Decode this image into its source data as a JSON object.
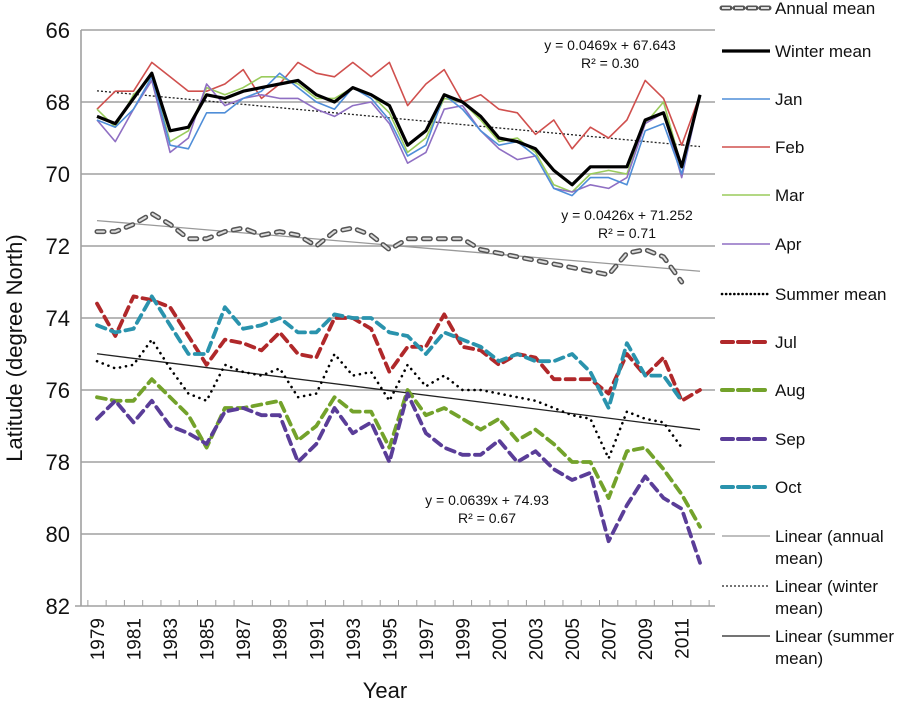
{
  "chart_data": {
    "type": "line",
    "title": "",
    "xlabel": "Year",
    "ylabel": "Latitude (degree North)",
    "y_reversed": true,
    "ylim": [
      66,
      82
    ],
    "y_ticks": [
      "66",
      "68",
      "70",
      "72",
      "74",
      "76",
      "78",
      "80",
      "82"
    ],
    "y_tick_values": [
      66,
      68,
      70,
      72,
      74,
      76,
      78,
      80,
      82
    ],
    "x_tick_labels": [
      "1979",
      "1981",
      "1983",
      "1985",
      "1987",
      "1989",
      "1991",
      "1993",
      "1995",
      "1997",
      "1999",
      "2001",
      "2003",
      "2005",
      "2007",
      "2009",
      "2011"
    ],
    "grid": "horizontal",
    "legend_position": "right",
    "x": [
      1979,
      1980,
      1981,
      1982,
      1983,
      1984,
      1985,
      1986,
      1987,
      1988,
      1989,
      1990,
      1991,
      1992,
      1993,
      1994,
      1995,
      1996,
      1997,
      1998,
      1999,
      2000,
      2001,
      2002,
      2003,
      2004,
      2005,
      2006,
      2007,
      2008,
      2009,
      2010,
      2011,
      2012
    ],
    "series": [
      {
        "name": "Annual mean",
        "color": "#555555",
        "style": "annual",
        "values": [
          71.6,
          71.6,
          71.4,
          71.1,
          71.4,
          71.8,
          71.8,
          71.6,
          71.5,
          71.7,
          71.6,
          71.7,
          72.0,
          71.6,
          71.5,
          71.7,
          72.1,
          71.8,
          71.8,
          71.8,
          71.8,
          72.1,
          72.2,
          72.3,
          72.4,
          72.5,
          72.6,
          72.7,
          72.8,
          72.2,
          72.1,
          72.3,
          73.0,
          null
        ]
      },
      {
        "name": "Winter mean",
        "color": "#000000",
        "style": "solid-bold",
        "values": [
          68.4,
          68.6,
          67.9,
          67.2,
          68.8,
          68.7,
          67.8,
          67.9,
          67.7,
          67.6,
          67.5,
          67.4,
          67.8,
          68.0,
          67.6,
          67.8,
          68.1,
          69.2,
          68.8,
          67.8,
          68.0,
          68.4,
          69.0,
          69.1,
          69.3,
          69.9,
          70.3,
          69.8,
          69.8,
          69.8,
          68.5,
          68.3,
          69.8,
          67.8
        ]
      },
      {
        "name": "Jan",
        "color": "#4f8ed8",
        "style": "solid",
        "values": [
          68.5,
          68.7,
          68.2,
          67.3,
          69.2,
          69.3,
          68.3,
          68.3,
          67.9,
          67.7,
          67.2,
          67.6,
          68.0,
          68.2,
          67.6,
          67.9,
          68.5,
          69.5,
          69.2,
          67.8,
          68.2,
          68.8,
          69.2,
          69.1,
          69.5,
          70.4,
          70.6,
          70.1,
          70.1,
          70.3,
          68.8,
          68.6,
          70.0,
          67.8
        ]
      },
      {
        "name": "Feb",
        "color": "#d0504e",
        "style": "solid",
        "values": [
          68.2,
          67.7,
          67.7,
          66.9,
          67.3,
          67.7,
          67.7,
          67.5,
          67.1,
          67.9,
          67.5,
          66.9,
          67.2,
          67.3,
          66.9,
          67.3,
          66.9,
          68.1,
          67.5,
          67.1,
          68.0,
          67.8,
          68.2,
          68.3,
          68.9,
          68.5,
          69.3,
          68.7,
          69.0,
          68.5,
          67.4,
          67.9,
          69.2,
          67.8
        ]
      },
      {
        "name": "Mar",
        "color": "#9acc5c",
        "style": "solid",
        "values": [
          68.2,
          68.7,
          67.8,
          67.3,
          69.1,
          68.8,
          67.6,
          67.8,
          67.6,
          67.3,
          67.3,
          67.5,
          67.9,
          67.9,
          67.6,
          67.8,
          68.3,
          69.4,
          69.0,
          67.9,
          68.0,
          68.5,
          69.1,
          69.0,
          69.4,
          70.3,
          70.5,
          70.0,
          69.9,
          70.0,
          68.6,
          68.0,
          69.8,
          67.8
        ]
      },
      {
        "name": "Apr",
        "color": "#8f6fc3",
        "style": "solid",
        "values": [
          68.5,
          69.1,
          68.2,
          67.4,
          69.4,
          69.0,
          67.5,
          68.1,
          67.9,
          67.8,
          67.9,
          67.9,
          68.2,
          68.4,
          68.1,
          68.0,
          68.6,
          69.7,
          69.4,
          68.2,
          68.1,
          68.8,
          69.3,
          69.6,
          69.5,
          70.4,
          70.5,
          70.3,
          70.4,
          70.1,
          68.6,
          68.3,
          70.1,
          67.8
        ]
      },
      {
        "name": "Summer mean",
        "color": "#000000",
        "style": "dotted",
        "values": [
          75.2,
          75.4,
          75.3,
          74.6,
          75.4,
          76.1,
          76.3,
          75.3,
          75.5,
          75.6,
          75.4,
          76.2,
          76.1,
          75.0,
          75.6,
          75.5,
          76.3,
          75.3,
          75.9,
          75.6,
          76.0,
          76.0,
          76.1,
          76.2,
          76.3,
          76.5,
          76.7,
          76.8,
          77.9,
          76.6,
          76.8,
          76.9,
          77.6,
          null
        ]
      },
      {
        "name": "Jul",
        "color": "#b0282a",
        "style": "dashed",
        "values": [
          73.6,
          74.5,
          73.4,
          73.5,
          73.7,
          74.5,
          75.3,
          74.6,
          74.7,
          74.9,
          74.4,
          75.0,
          75.1,
          74.0,
          74.0,
          74.3,
          75.5,
          74.8,
          74.8,
          73.9,
          74.8,
          74.9,
          75.3,
          75.0,
          75.1,
          75.7,
          75.7,
          75.7,
          76.1,
          75.0,
          75.6,
          75.1,
          76.3,
          76.0
        ]
      },
      {
        "name": "Aug",
        "color": "#73a22b",
        "style": "dashed",
        "values": [
          76.2,
          76.3,
          76.3,
          75.7,
          76.2,
          76.7,
          77.6,
          76.5,
          76.5,
          76.4,
          76.3,
          77.4,
          77.0,
          76.2,
          76.6,
          76.6,
          77.6,
          76.0,
          76.7,
          76.5,
          76.8,
          77.1,
          76.8,
          77.4,
          77.1,
          77.5,
          78.0,
          78.0,
          79.0,
          77.7,
          77.6,
          78.2,
          78.9,
          79.8
        ]
      },
      {
        "name": "Sep",
        "color": "#5a3d98",
        "style": "dashed",
        "values": [
          76.8,
          76.3,
          76.9,
          76.3,
          77.0,
          77.2,
          77.5,
          76.6,
          76.5,
          76.7,
          76.7,
          78.0,
          77.5,
          76.5,
          77.2,
          76.9,
          78.0,
          76.1,
          77.2,
          77.6,
          77.8,
          77.8,
          77.4,
          78.0,
          77.7,
          78.2,
          78.5,
          78.3,
          80.2,
          79.2,
          78.4,
          79.0,
          79.3,
          80.8
        ]
      },
      {
        "name": "Oct",
        "color": "#2a93ad",
        "style": "dashed",
        "values": [
          74.2,
          74.4,
          74.3,
          73.4,
          74.2,
          75.0,
          75.0,
          73.7,
          74.3,
          74.2,
          74.0,
          74.4,
          74.4,
          73.9,
          74.0,
          74.0,
          74.4,
          74.5,
          75.0,
          74.4,
          74.6,
          74.8,
          75.2,
          75.0,
          75.2,
          75.2,
          75.0,
          75.5,
          76.5,
          74.7,
          75.6,
          75.6,
          76.3,
          null
        ]
      }
    ],
    "trendlines": [
      {
        "name": "Linear (annual mean)",
        "color": "#999999",
        "style": "solid-thin",
        "slope": 0.0426,
        "intercept": 71.252,
        "equation": "y = 0.0426x + 71.252",
        "r2": "R² = 0.71"
      },
      {
        "name": "Linear (winter mean)",
        "color": "#222222",
        "style": "dotted-thin",
        "slope": 0.0469,
        "intercept": 67.643,
        "equation": "y = 0.0469x + 67.643",
        "r2": "R² = 0.30"
      },
      {
        "name": "Linear (summer mean)",
        "color": "#222222",
        "style": "solid-thin",
        "slope": 0.0639,
        "intercept": 74.93,
        "equation": "y = 0.0639x + 74.93",
        "r2": "R² = 0.67"
      }
    ],
    "legend": [
      {
        "label": "Annual mean",
        "key": "annual"
      },
      {
        "label": "Winter mean",
        "key": "winter"
      },
      {
        "label": "Jan",
        "key": "jan"
      },
      {
        "label": "Feb",
        "key": "feb"
      },
      {
        "label": "Mar",
        "key": "mar"
      },
      {
        "label": "Apr",
        "key": "apr"
      },
      {
        "label": "Summer mean",
        "key": "summer"
      },
      {
        "label": "Jul",
        "key": "jul"
      },
      {
        "label": "Aug",
        "key": "aug"
      },
      {
        "label": "Sep",
        "key": "sep"
      },
      {
        "label": "Oct",
        "key": "oct"
      },
      {
        "label": "Linear (annual mean)",
        "key": "lin-annual",
        "lines": [
          "Linear (annual",
          "mean)"
        ]
      },
      {
        "label": "Linear (winter mean)",
        "key": "lin-winter",
        "lines": [
          "Linear (winter",
          "mean)"
        ]
      },
      {
        "label": "Linear (summer mean)",
        "key": "lin-summer",
        "lines": [
          "Linear (summer",
          "mean)"
        ]
      }
    ]
  }
}
